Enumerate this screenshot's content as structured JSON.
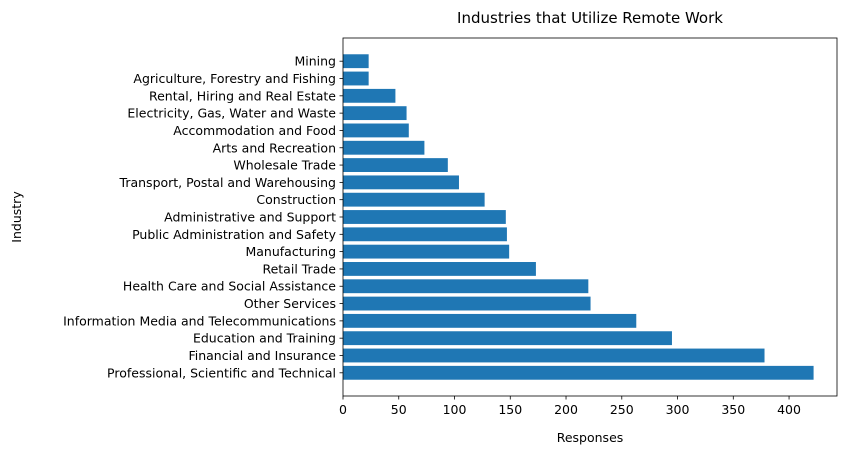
{
  "chart_data": {
    "type": "bar",
    "orientation": "horizontal",
    "title": "Industries that Utilize Remote Work",
    "xlabel": "Responses",
    "ylabel": "Industry",
    "xlim": [
      0,
      443
    ],
    "xticks": [
      0,
      50,
      100,
      150,
      200,
      250,
      300,
      350,
      400
    ],
    "grid": false,
    "bar_color": "#1f77b4",
    "categories": [
      "Professional, Scientific and Technical",
      "Financial and Insurance",
      "Education and Training",
      "Information Media and Telecommunications",
      "Other Services",
      "Health Care and Social Assistance",
      "Retail Trade",
      "Manufacturing",
      "Public Administration and Safety",
      "Administrative and Support",
      "Construction",
      "Transport, Postal and Warehousing",
      "Wholesale Trade",
      "Arts and Recreation",
      "Accommodation and Food",
      "Electricity, Gas, Water and Waste",
      "Rental, Hiring and Real Estate",
      "Agriculture, Forestry and Fishing",
      "Mining"
    ],
    "values": [
      422,
      378,
      295,
      263,
      222,
      220,
      173,
      149,
      147,
      146,
      127,
      104,
      94,
      73,
      59,
      57,
      47,
      23,
      23
    ]
  }
}
